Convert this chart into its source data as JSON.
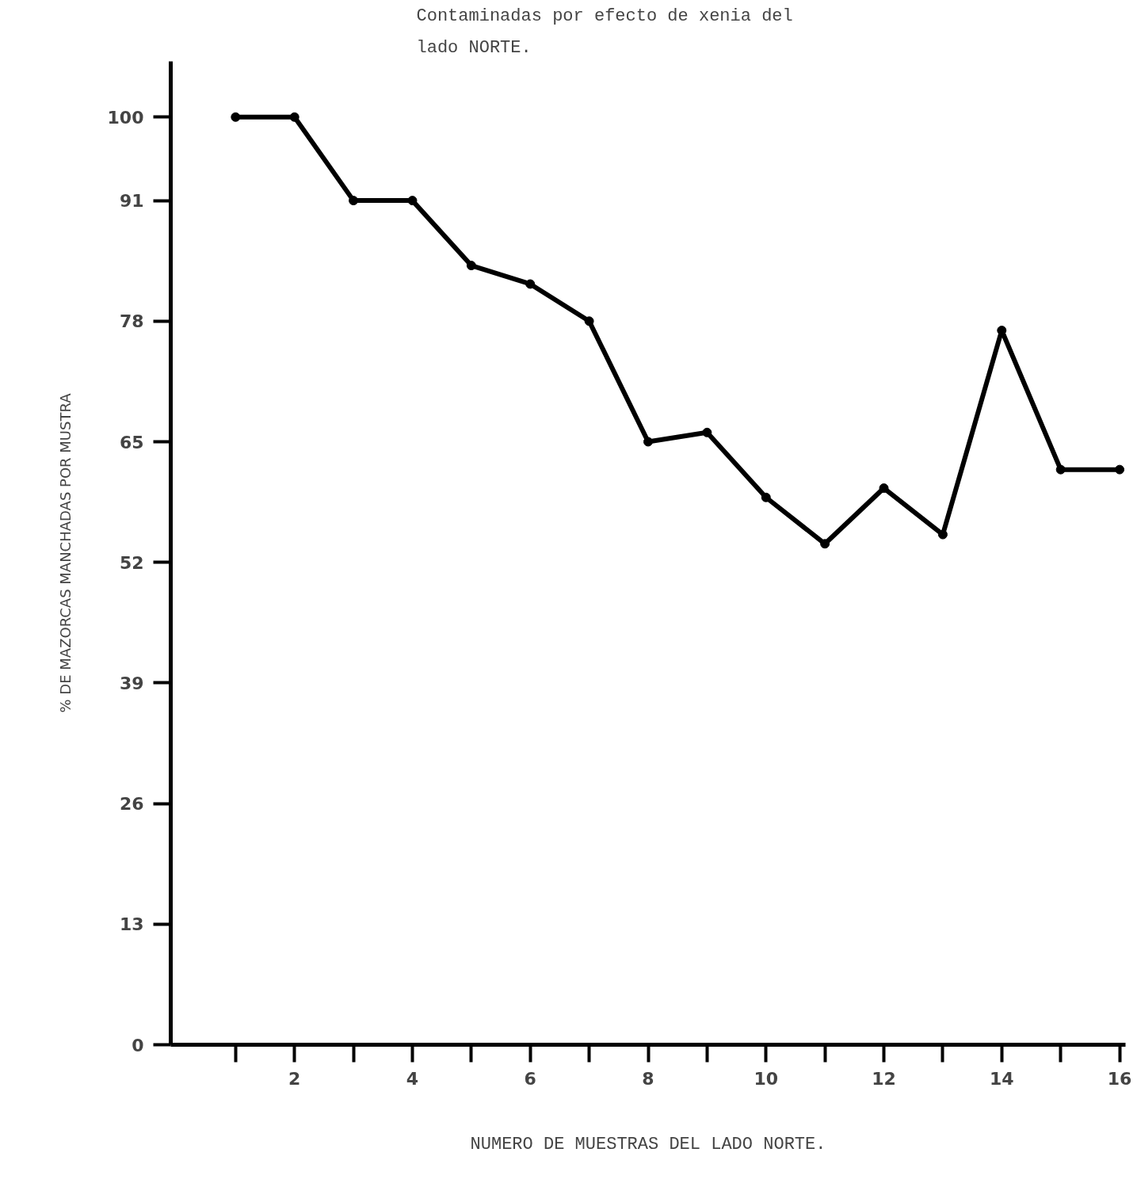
{
  "chart_data": {
    "type": "line",
    "title": "Contaminadas por efecto de xenia del\nlado NORTE.",
    "xlabel": "NUMERO DE MUESTRAS DEL LADO NORTE.",
    "ylabel": "% DE MAZORCAS MANCHADAS POR MUSTRA",
    "x": [
      1,
      2,
      3,
      4,
      5,
      6,
      7,
      8,
      9,
      10,
      11,
      12,
      13,
      14,
      15,
      16
    ],
    "series": [
      {
        "color": "#000000",
        "values": [
          100,
          100,
          91,
          91,
          84,
          82,
          78,
          65,
          66,
          59,
          54,
          60,
          55,
          77,
          62,
          62
        ]
      }
    ],
    "xlim": [
      -0.1,
      16.1
    ],
    "ylim": [
      0,
      106
    ],
    "xticks": [
      2,
      4,
      6,
      8,
      10,
      12,
      14,
      16
    ],
    "yticks": [
      0,
      13,
      26,
      39,
      52,
      65,
      78,
      91,
      100
    ],
    "grid": false,
    "marker": "circle",
    "line_style": "solid"
  }
}
